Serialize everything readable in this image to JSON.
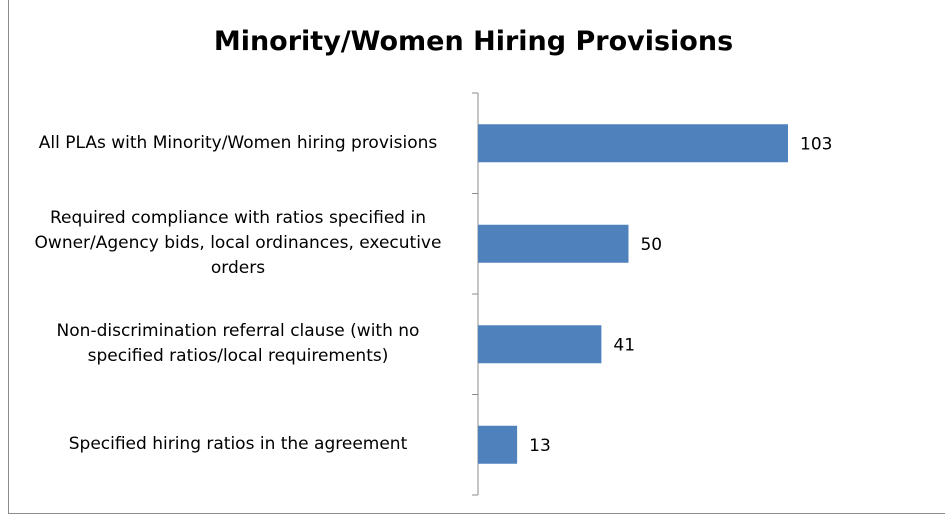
{
  "chart_data": {
    "type": "bar",
    "orientation": "horizontal",
    "title": "Minority/Women Hiring Provisions",
    "categories": [
      "All PLAs with Minority/Women hiring provisions",
      "Required compliance with ratios specified in Owner/Agency bids, local ordinances, executive orders",
      "Non-discrimination referral clause (with no specified ratios/local requirements)",
      "Specified hiring ratios in the agreement"
    ],
    "values": [
      103,
      50,
      41,
      13
    ],
    "color": "#4f81bd"
  }
}
